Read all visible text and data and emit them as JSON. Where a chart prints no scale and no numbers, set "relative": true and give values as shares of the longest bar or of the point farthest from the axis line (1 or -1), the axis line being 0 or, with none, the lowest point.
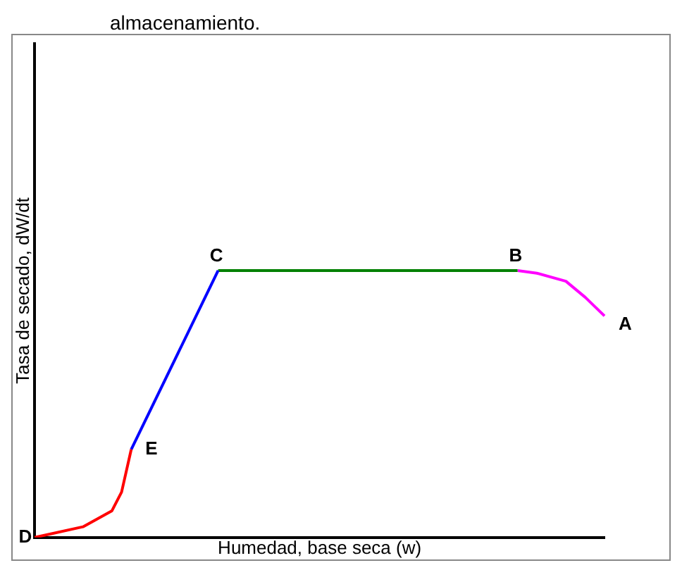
{
  "chart_data": {
    "type": "line",
    "relative": true,
    "xlabel": "Humedad, base seca (w)",
    "ylabel": "Tasa de secado, dW/dt",
    "tick_labels": false,
    "grid": false,
    "legend": false,
    "marker": "none",
    "line_style": "solid",
    "categories": [
      null,
      null,
      null,
      null,
      null,
      null,
      null,
      null,
      null,
      null,
      null,
      null,
      null,
      null,
      null,
      null,
      null,
      null,
      null,
      null,
      null,
      null,
      null,
      null,
      null,
      null,
      null,
      null,
      null,
      null,
      null,
      null,
      null,
      null,
      null,
      null,
      null,
      null,
      null,
      null,
      null,
      null,
      null,
      null,
      null,
      null,
      null,
      null,
      null,
      null,
      null,
      null,
      null,
      null,
      null,
      null,
      null,
      null,
      null,
      null
    ],
    "annotations": [
      "almacenamiento.",
      "D",
      "E",
      "C",
      "B",
      "A"
    ],
    "series": [
      {
        "color": "#ff0000",
        "values": [
          0,
          null,
          null,
          null,
          null,
          0.04,
          null,
          null,
          0.1,
          0.17,
          0.33,
          null,
          null,
          null,
          null,
          null,
          null,
          null,
          null,
          null,
          null,
          null,
          null,
          null,
          null,
          null,
          null,
          null,
          null,
          null,
          null,
          null,
          null,
          null,
          null,
          null,
          null,
          null,
          null,
          null,
          null,
          null,
          null,
          null,
          null,
          null,
          null,
          null,
          null,
          null,
          null,
          null,
          null,
          null,
          null,
          null,
          null,
          null,
          null,
          null
        ]
      },
      {
        "color": "#0000ff",
        "values": [
          null,
          null,
          null,
          null,
          null,
          null,
          null,
          null,
          null,
          null,
          0.33,
          null,
          null,
          null,
          null,
          null,
          null,
          null,
          null,
          1,
          null,
          null,
          null,
          null,
          null,
          null,
          null,
          null,
          null,
          null,
          null,
          null,
          null,
          null,
          null,
          null,
          null,
          null,
          null,
          null,
          null,
          null,
          null,
          null,
          null,
          null,
          null,
          null,
          null,
          null,
          null,
          null,
          null,
          null,
          null,
          null,
          null,
          null,
          null,
          null
        ]
      },
      {
        "color": "#008000",
        "values": [
          null,
          null,
          null,
          null,
          null,
          null,
          null,
          null,
          null,
          null,
          null,
          null,
          null,
          null,
          null,
          null,
          null,
          null,
          null,
          1,
          null,
          null,
          null,
          null,
          null,
          null,
          null,
          null,
          null,
          null,
          null,
          null,
          null,
          null,
          null,
          null,
          null,
          null,
          null,
          null,
          null,
          null,
          null,
          null,
          null,
          null,
          null,
          null,
          null,
          null,
          1,
          null,
          null,
          null,
          null,
          null,
          null,
          null,
          null,
          null
        ]
      },
      {
        "color": "#ff00ff",
        "values": [
          null,
          null,
          null,
          null,
          null,
          null,
          null,
          null,
          null,
          null,
          null,
          null,
          null,
          null,
          null,
          null,
          null,
          null,
          null,
          null,
          null,
          null,
          null,
          null,
          null,
          null,
          null,
          null,
          null,
          null,
          null,
          null,
          null,
          null,
          null,
          null,
          null,
          null,
          null,
          null,
          null,
          null,
          null,
          null,
          null,
          null,
          null,
          null,
          null,
          null,
          1,
          null,
          0.99,
          null,
          null,
          0.96,
          null,
          0.9,
          null,
          0.83
        ]
      }
    ]
  }
}
